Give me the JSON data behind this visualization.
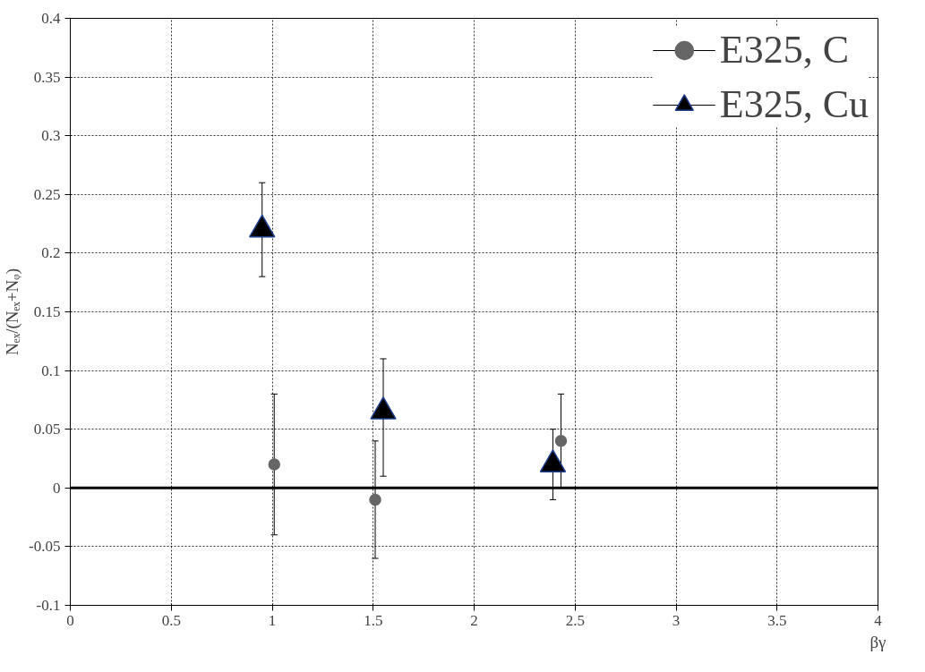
{
  "chart_data": {
    "type": "scatter",
    "xlabel": "βγ",
    "ylabel": "Nₑₓ/(Nₑₓ+Nᵩ)",
    "xlim": [
      0,
      4
    ],
    "ylim": [
      -0.1,
      0.4
    ],
    "xticks": [
      0,
      0.5,
      1,
      1.5,
      2,
      2.5,
      3,
      3.5,
      4
    ],
    "yticks": [
      -0.1,
      -0.05,
      0,
      0.05,
      0.1,
      0.15,
      0.2,
      0.25,
      0.3,
      0.35,
      0.4
    ],
    "grid": true,
    "legend": "top right",
    "ref_lines": [
      {
        "axis": "y",
        "value": 0,
        "color": "#000000"
      }
    ],
    "series": [
      {
        "name": "E325, C",
        "color": "#666666",
        "marker": "circle",
        "x": [
          1.01,
          1.51,
          2.43
        ],
        "values": [
          0.02,
          -0.01,
          0.04
        ],
        "errors": [
          [
            -0.04,
            0.08
          ],
          [
            -0.06,
            0.04
          ],
          [
            0.0,
            0.08
          ]
        ]
      },
      {
        "name": "E325, Cu",
        "color": "#000000",
        "marker": "triangle",
        "x": [
          0.95,
          1.55,
          2.39
        ],
        "values": [
          0.22,
          0.065,
          0.02
        ],
        "errors": [
          [
            0.18,
            0.26
          ],
          [
            0.01,
            0.11
          ],
          [
            -0.01,
            0.05
          ]
        ]
      }
    ]
  }
}
